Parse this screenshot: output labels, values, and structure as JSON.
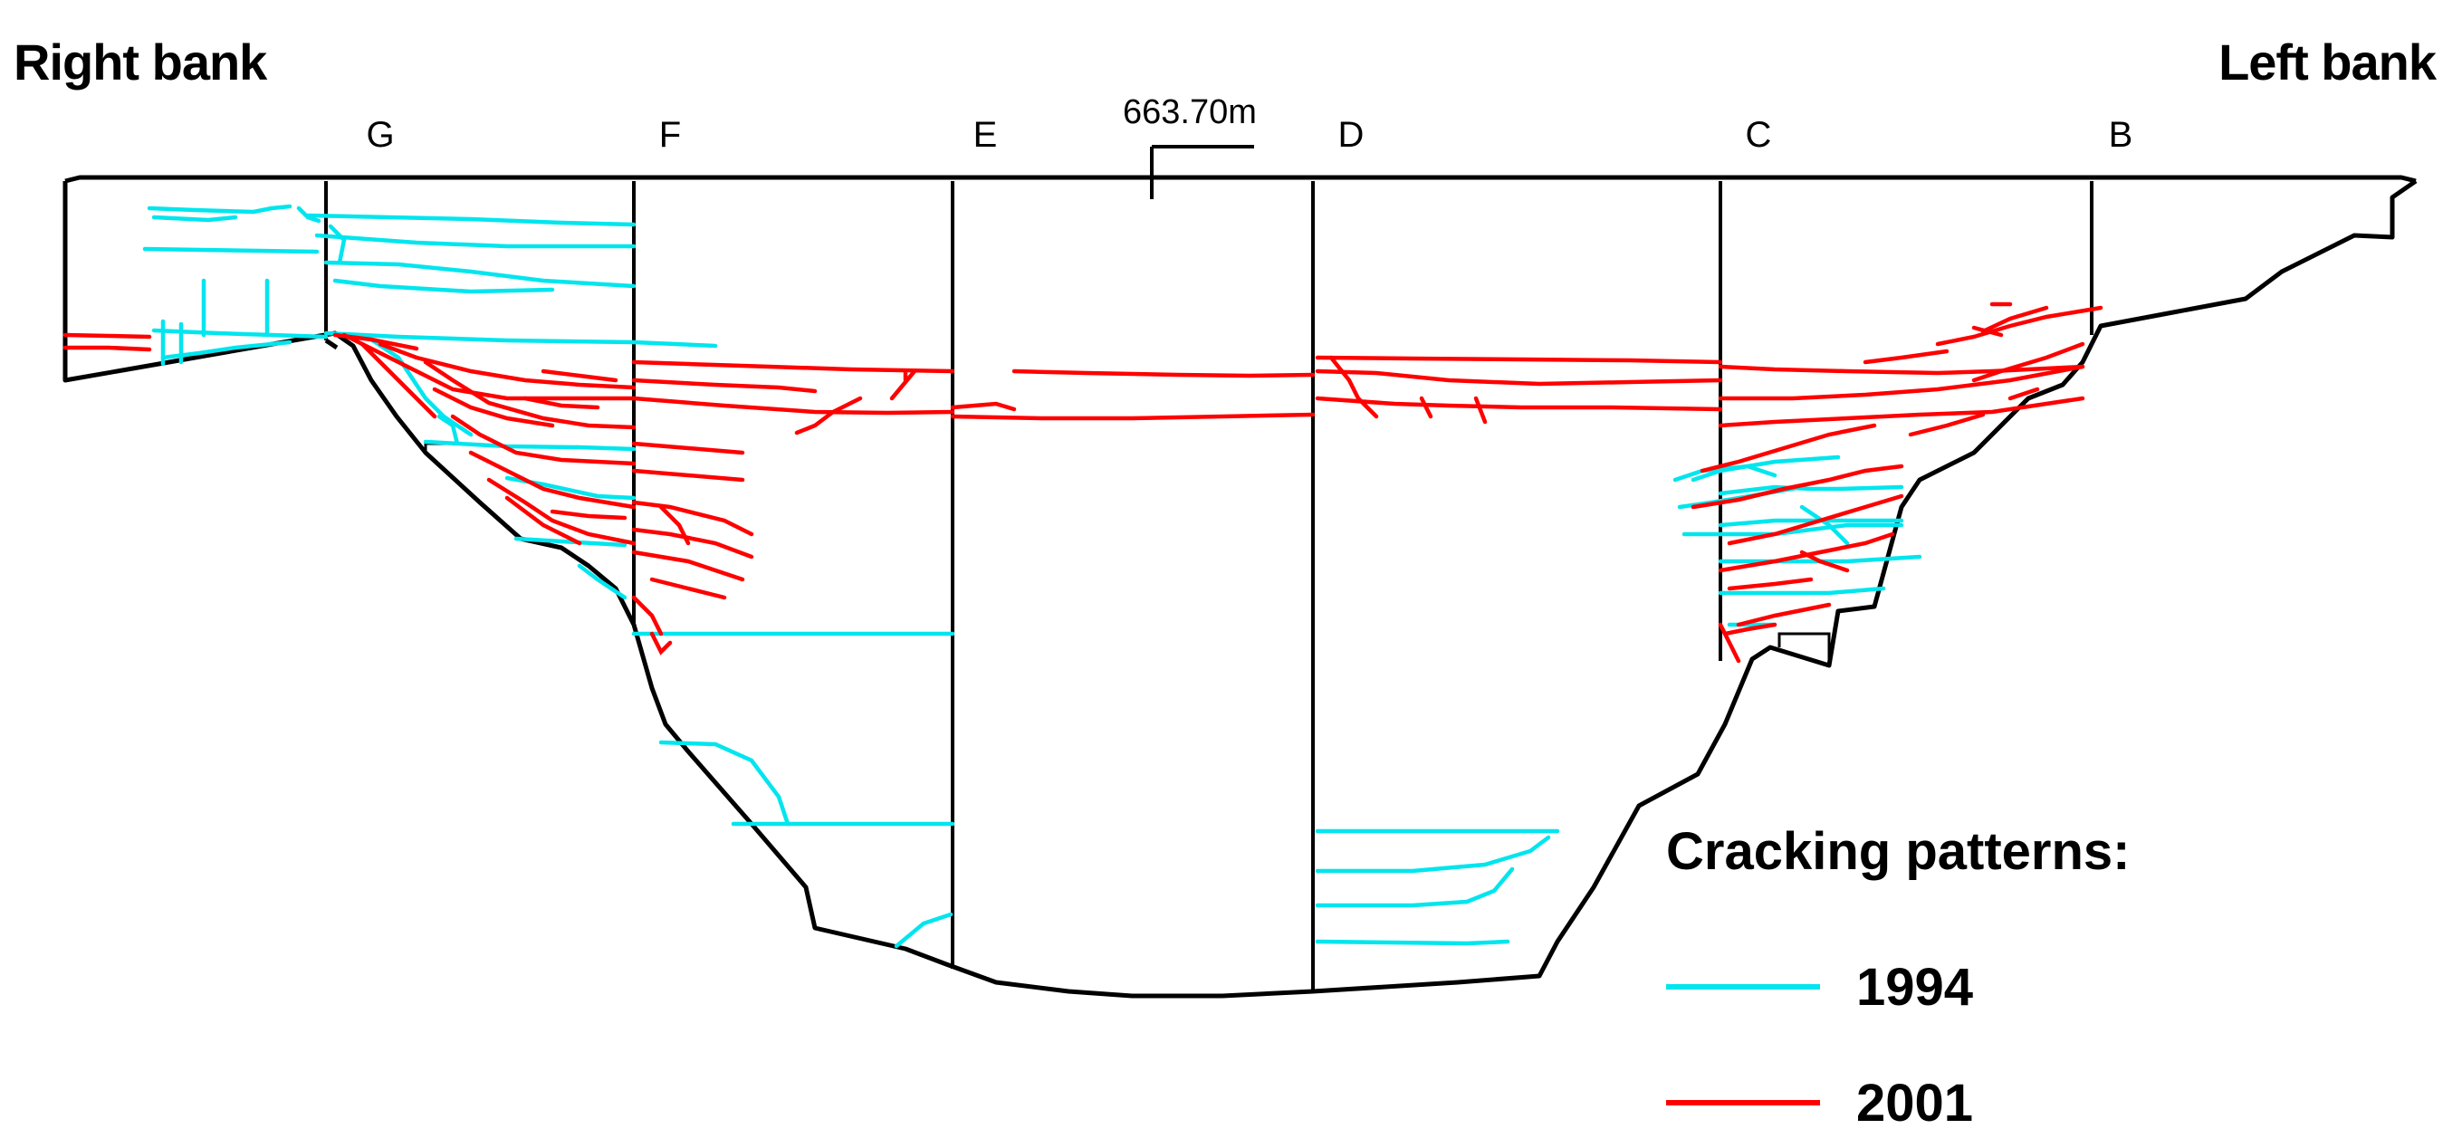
{
  "labels": {
    "right_bank": "Right bank",
    "left_bank": "Left bank",
    "crest_elevation": "663.70m"
  },
  "blocks": [
    "G",
    "F",
    "E",
    "D",
    "C",
    "B"
  ],
  "legend": {
    "title": "Cracking patterns:",
    "items": [
      {
        "label": "1994",
        "color": "#00e5ee"
      },
      {
        "label": "2001",
        "color": "#ff0000"
      }
    ]
  },
  "colors": {
    "crack_1994": "#00e5ee",
    "crack_2001": "#ff0000",
    "outline": "#000000"
  }
}
